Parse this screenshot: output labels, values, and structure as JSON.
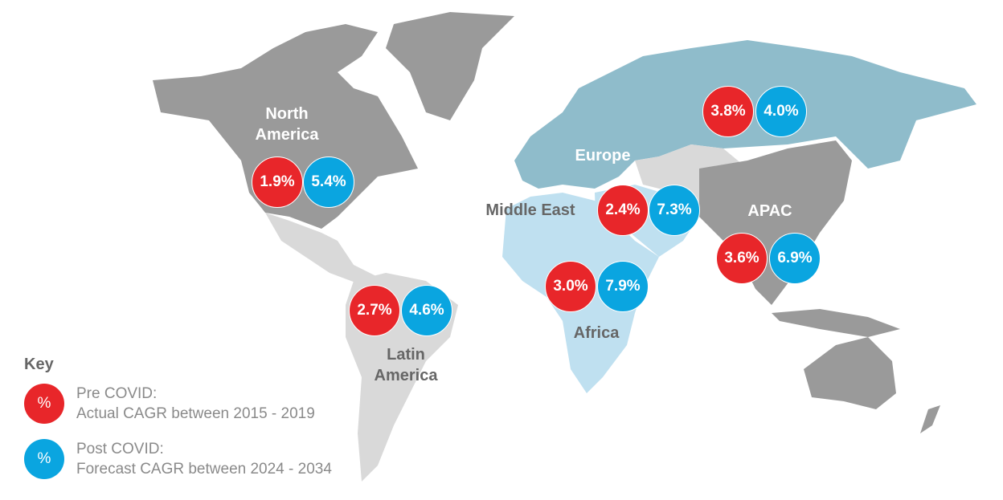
{
  "colors": {
    "pre": "#e8262a",
    "post": "#0aa5e0",
    "land": "#9a9a9a",
    "land_light": "#d9d9d9",
    "europe": "#8fbccb",
    "africa": "#bfe0f0"
  },
  "regions": {
    "north_america": {
      "line1": "North",
      "line2": "America",
      "pre": "1.9%",
      "post": "5.4%"
    },
    "europe": {
      "name": "Europe",
      "pre": "3.8%",
      "post": "4.0%"
    },
    "middle_east": {
      "name": "Middle East",
      "pre": "2.4%",
      "post": "7.3%"
    },
    "apac": {
      "name": "APAC",
      "pre": "3.6%",
      "post": "6.9%"
    },
    "africa": {
      "name": "Africa",
      "pre": "3.0%",
      "post": "7.9%"
    },
    "latin_america": {
      "line1": "Latin",
      "line2": "America",
      "pre": "2.7%",
      "post": "4.6%"
    }
  },
  "key": {
    "title": "Key",
    "symbol": "%",
    "pre_line1": "Pre COVID:",
    "pre_line2": "Actual CAGR between 2015 - 2019",
    "post_line1": "Post COVID:",
    "post_line2": "Forecast CAGR between 2024 - 2034"
  }
}
